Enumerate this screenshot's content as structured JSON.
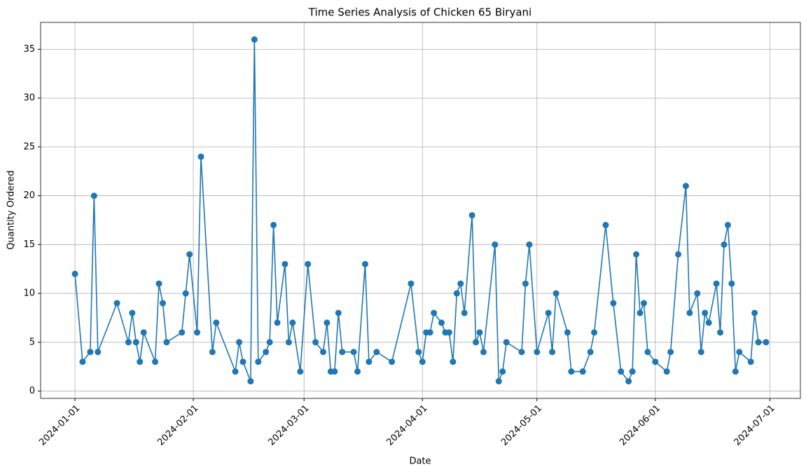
{
  "chart_data": {
    "type": "line",
    "title": "Time Series Analysis of Chicken 65 Biryani",
    "x_label": "Date",
    "y_label": "Quantity Ordered",
    "x": [
      "2024-01-01",
      "2024-01-03",
      "2024-01-05",
      "2024-01-06",
      "2024-01-07",
      "2024-01-12",
      "2024-01-15",
      "2024-01-16",
      "2024-01-17",
      "2024-01-18",
      "2024-01-19",
      "2024-01-22",
      "2024-01-23",
      "2024-01-24",
      "2024-01-25",
      "2024-01-29",
      "2024-01-30",
      "2024-01-31",
      "2024-02-02",
      "2024-02-03",
      "2024-02-06",
      "2024-02-07",
      "2024-02-12",
      "2024-02-13",
      "2024-02-14",
      "2024-02-16",
      "2024-02-17",
      "2024-02-18",
      "2024-02-20",
      "2024-02-21",
      "2024-02-22",
      "2024-02-23",
      "2024-02-25",
      "2024-02-26",
      "2024-02-27",
      "2024-02-29",
      "2024-03-02",
      "2024-03-04",
      "2024-03-06",
      "2024-03-07",
      "2024-03-08",
      "2024-03-09",
      "2024-03-10",
      "2024-03-11",
      "2024-03-14",
      "2024-03-15",
      "2024-03-17",
      "2024-03-18",
      "2024-03-20",
      "2024-03-24",
      "2024-03-29",
      "2024-03-31",
      "2024-04-01",
      "2024-04-02",
      "2024-04-03",
      "2024-04-04",
      "2024-04-06",
      "2024-04-07",
      "2024-04-08",
      "2024-04-09",
      "2024-04-10",
      "2024-04-11",
      "2024-04-12",
      "2024-04-14",
      "2024-04-15",
      "2024-04-16",
      "2024-04-17",
      "2024-04-20",
      "2024-04-21",
      "2024-04-22",
      "2024-04-23",
      "2024-04-27",
      "2024-04-28",
      "2024-04-29",
      "2024-05-01",
      "2024-05-04",
      "2024-05-05",
      "2024-05-06",
      "2024-05-09",
      "2024-05-10",
      "2024-05-13",
      "2024-05-15",
      "2024-05-16",
      "2024-05-19",
      "2024-05-21",
      "2024-05-23",
      "2024-05-25",
      "2024-05-26",
      "2024-05-27",
      "2024-05-28",
      "2024-05-29",
      "2024-05-30",
      "2024-06-01",
      "2024-06-04",
      "2024-06-05",
      "2024-06-07",
      "2024-06-09",
      "2024-06-10",
      "2024-06-12",
      "2024-06-13",
      "2024-06-14",
      "2024-06-15",
      "2024-06-17",
      "2024-06-18",
      "2024-06-19",
      "2024-06-20",
      "2024-06-21",
      "2024-06-22",
      "2024-06-23",
      "2024-06-26",
      "2024-06-27",
      "2024-06-28",
      "2024-06-30"
    ],
    "values": [
      12,
      3,
      4,
      20,
      4,
      9,
      5,
      8,
      5,
      3,
      6,
      3,
      11,
      9,
      5,
      6,
      10,
      14,
      6,
      24,
      4,
      7,
      2,
      5,
      3,
      1,
      36,
      3,
      4,
      5,
      17,
      7,
      13,
      5,
      7,
      2,
      13,
      5,
      4,
      7,
      2,
      2,
      8,
      4,
      4,
      2,
      13,
      3,
      4,
      3,
      11,
      4,
      3,
      6,
      6,
      8,
      7,
      6,
      6,
      3,
      10,
      11,
      8,
      18,
      5,
      6,
      4,
      15,
      1,
      2,
      5,
      4,
      11,
      15,
      4,
      8,
      4,
      10,
      6,
      2,
      2,
      4,
      6,
      17,
      9,
      2,
      1,
      2,
      14,
      8,
      9,
      4,
      3,
      2,
      4,
      14,
      21,
      8,
      10,
      4,
      8,
      7,
      11,
      6,
      15,
      17,
      11,
      2,
      4,
      3,
      8,
      5,
      5
    ],
    "color": "#1f77b4",
    "xlim": [
      "2023-12-23",
      "2024-07-09"
    ],
    "xticks": [
      "2024-01-01",
      "2024-02-01",
      "2024-03-01",
      "2024-04-01",
      "2024-05-01",
      "2024-06-01",
      "2024-07-01"
    ],
    "ylim": [
      -0.75,
      37.75
    ],
    "yticks": [
      0,
      5,
      10,
      15,
      20,
      25,
      30,
      35
    ],
    "grid": true
  }
}
